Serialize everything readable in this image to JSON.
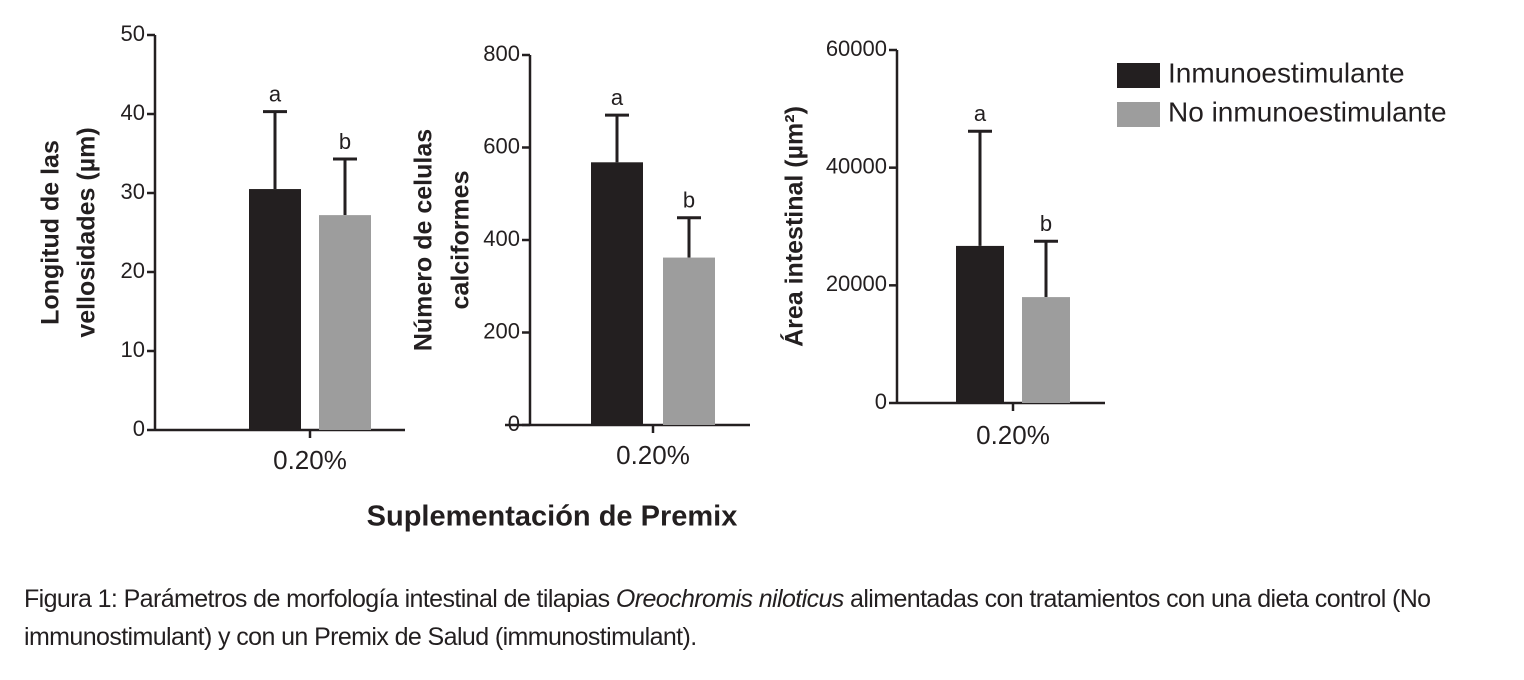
{
  "chart_data": [
    {
      "type": "bar",
      "ylabel": [
        "Longitud de las",
        "vellosidades (µm)"
      ],
      "categories": [
        "0.20%"
      ],
      "ylim": [
        0,
        50
      ],
      "yticks": [
        0,
        10,
        20,
        30,
        40,
        50
      ],
      "series": [
        {
          "name": "Inmunoestimulante",
          "color": "#231f20",
          "values": [
            30.5
          ],
          "errors": [
            9.8
          ],
          "letters": [
            "a"
          ]
        },
        {
          "name": "No inmunoestimulante",
          "color": "#9d9d9d",
          "values": [
            27.2
          ],
          "errors": [
            7.1
          ],
          "letters": [
            "b"
          ]
        }
      ]
    },
    {
      "type": "bar",
      "ylabel": [
        "Número de celulas",
        "calciformes"
      ],
      "categories": [
        "0.20%"
      ],
      "ylim": [
        0,
        800
      ],
      "yticks": [
        0,
        200,
        400,
        600,
        800
      ],
      "series": [
        {
          "color": "#231f20",
          "values": [
            568
          ],
          "errors": [
            102
          ],
          "letters": [
            "a"
          ]
        },
        {
          "color": "#9d9d9d",
          "values": [
            362
          ],
          "errors": [
            86
          ],
          "letters": [
            "b"
          ]
        }
      ]
    },
    {
      "type": "bar",
      "ylabel": [
        "Área intestinal (µm²)"
      ],
      "categories": [
        "0.20%"
      ],
      "ylim": [
        0,
        60000
      ],
      "yticks": [
        0,
        20000,
        40000,
        60000
      ],
      "series": [
        {
          "color": "#231f20",
          "values": [
            26700
          ],
          "errors": [
            19500
          ],
          "letters": [
            "a"
          ]
        },
        {
          "color": "#9d9d9d",
          "values": [
            18000
          ],
          "errors": [
            9500
          ],
          "letters": [
            "b"
          ]
        }
      ]
    }
  ],
  "xlabel": "Suplementación de Premix",
  "caption": [
    "Figura 1: Parámetros de morfología intestinal de tilapias ",
    "Oreochromis niloticus",
    " alimentadas con tratamientos con una dieta control (No immunostimulant) y con un Premix de Salud (immunostimulant)."
  ]
}
